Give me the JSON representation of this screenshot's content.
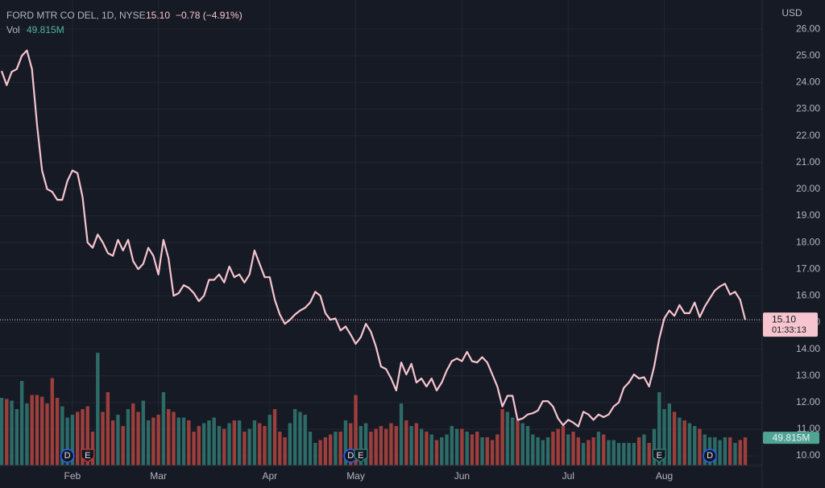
{
  "chart_data": {
    "type": "line",
    "title": "FORD MTR CO DEL, 1D, NYSE",
    "last_price": {
      "value": 15.1,
      "label": "15.10"
    },
    "change": "−0.78 (−4.91%)",
    "countdown": "01:33:13",
    "currency": "USD",
    "ylim": [
      9.64,
      27.09
    ],
    "yticks": [
      {
        "value": 10,
        "label": "10.00"
      },
      {
        "value": 11,
        "label": "11.00"
      },
      {
        "value": 12,
        "label": "12.00"
      },
      {
        "value": 13,
        "label": "13.00"
      },
      {
        "value": 14,
        "label": "14.00"
      },
      {
        "value": 15,
        "label": "15.00"
      },
      {
        "value": 16,
        "label": "16.00"
      },
      {
        "value": 17,
        "label": "17.00"
      },
      {
        "value": 18,
        "label": "18.00"
      },
      {
        "value": 19,
        "label": "19.00"
      },
      {
        "value": 20,
        "label": "20.00"
      },
      {
        "value": 21,
        "label": "21.00"
      },
      {
        "value": 22,
        "label": "22.00"
      },
      {
        "value": 23,
        "label": "23.00"
      },
      {
        "value": 24,
        "label": "24.00"
      },
      {
        "value": 25,
        "label": "25.00"
      },
      {
        "value": 26,
        "label": "26.00"
      }
    ],
    "grid": true,
    "categories": [
      null,
      null,
      null,
      null,
      null,
      null,
      null,
      null,
      null,
      null,
      null,
      null,
      null,
      null,
      "Feb",
      null,
      null,
      null,
      null,
      null,
      null,
      null,
      null,
      null,
      null,
      null,
      null,
      null,
      null,
      null,
      null,
      "Mar",
      null,
      null,
      null,
      null,
      null,
      null,
      null,
      null,
      null,
      null,
      null,
      null,
      null,
      null,
      null,
      null,
      null,
      null,
      null,
      null,
      null,
      "Apr",
      null,
      null,
      null,
      null,
      null,
      null,
      null,
      null,
      null,
      null,
      null,
      null,
      null,
      null,
      null,
      null,
      "May",
      null,
      null,
      null,
      null,
      null,
      null,
      null,
      null,
      null,
      null,
      null,
      null,
      null,
      null,
      null,
      null,
      null,
      null,
      null,
      null,
      "Jun",
      null,
      null,
      null,
      null,
      null,
      null,
      null,
      null,
      null,
      null,
      null,
      null,
      null,
      null,
      null,
      null,
      null,
      null,
      null,
      null,
      "Jul",
      null,
      null,
      null,
      null,
      null,
      null,
      null,
      null,
      null,
      null,
      null,
      null,
      null,
      null,
      null,
      null,
      null,
      null,
      "Aug",
      null,
      null,
      null,
      null,
      null,
      null,
      null,
      null,
      null,
      null,
      null,
      null,
      null,
      null,
      null,
      null
    ],
    "series": [
      {
        "color": "#f7c5cf",
        "values": [
          24.43,
          23.9,
          24.4,
          24.5,
          25.0,
          25.2,
          24.5,
          22.4,
          20.7,
          20.0,
          19.9,
          19.6,
          19.6,
          20.3,
          20.7,
          20.6,
          19.7,
          18.0,
          17.8,
          18.3,
          18.0,
          17.6,
          17.5,
          18.1,
          17.7,
          18.1,
          17.3,
          17.0,
          17.2,
          17.8,
          17.5,
          16.8,
          18.1,
          17.4,
          16.0,
          16.1,
          16.4,
          16.3,
          16.1,
          15.8,
          16.0,
          16.6,
          16.6,
          16.8,
          16.5,
          17.1,
          16.7,
          16.8,
          16.5,
          16.8,
          17.7,
          17.2,
          16.7,
          16.7,
          15.85,
          15.3,
          14.95,
          15.1,
          15.3,
          15.45,
          15.55,
          15.75,
          16.15,
          16.0,
          15.35,
          15.1,
          15.15,
          14.7,
          14.85,
          14.55,
          14.2,
          14.45,
          14.95,
          14.65,
          14.1,
          13.35,
          13.25,
          12.9,
          12.45,
          13.5,
          13.05,
          13.45,
          12.75,
          12.9,
          12.6,
          12.9,
          12.45,
          12.75,
          13.2,
          13.55,
          13.65,
          13.55,
          13.9,
          13.55,
          13.5,
          13.7,
          13.5,
          13.05,
          12.6,
          11.85,
          12.25,
          12.25,
          11.35,
          11.4,
          11.55,
          11.6,
          11.7,
          12.05,
          12.05,
          11.85,
          11.4,
          11.15,
          11.35,
          11.25,
          11.1,
          11.65,
          11.55,
          11.35,
          11.55,
          11.45,
          11.55,
          11.85,
          12.0,
          12.55,
          12.75,
          13.05,
          12.9,
          12.95,
          12.6,
          13.35,
          14.4,
          15.15,
          15.45,
          15.25,
          15.65,
          15.35,
          15.35,
          15.75,
          15.2,
          15.6,
          15.9,
          16.2,
          16.35,
          16.45,
          16.05,
          16.15,
          15.85,
          15.1
        ]
      }
    ],
    "volume": {
      "label": "Vol",
      "lim": [
        0,
        826
      ],
      "up_color": "#2d6b66",
      "down_color": "#9c3f3c",
      "current": {
        "value": 49.815,
        "label": "49.815M"
      },
      "values": [
        120,
        118,
        115,
        100,
        150,
        110,
        125,
        125,
        122,
        110,
        155,
        120,
        105,
        85,
        90,
        95,
        100,
        105,
        60,
        200,
        95,
        130,
        80,
        90,
        70,
        100,
        110,
        95,
        115,
        80,
        85,
        90,
        130,
        100,
        95,
        85,
        85,
        80,
        60,
        70,
        75,
        80,
        85,
        70,
        65,
        75,
        80,
        80,
        60,
        65,
        80,
        75,
        70,
        90,
        100,
        60,
        50,
        75,
        100,
        95,
        90,
        60,
        40,
        45,
        50,
        55,
        60,
        60,
        80,
        75,
        125,
        70,
        75,
        60,
        65,
        70,
        65,
        75,
        70,
        110,
        80,
        70,
        75,
        65,
        60,
        55,
        45,
        50,
        55,
        70,
        65,
        65,
        60,
        55,
        60,
        50,
        50,
        45,
        55,
        100,
        95,
        85,
        80,
        75,
        70,
        55,
        50,
        45,
        50,
        60,
        65,
        70,
        55,
        60,
        50,
        40,
        45,
        50,
        60,
        55,
        45,
        45,
        40,
        40,
        40,
        40,
        50,
        55,
        40,
        65,
        130,
        100,
        110,
        95,
        85,
        80,
        75,
        70,
        65,
        55,
        50,
        50,
        45,
        50,
        50,
        40,
        45,
        49.815
      ]
    },
    "events": [
      {
        "label": "D",
        "at": 13,
        "color": "#2962ff"
      },
      {
        "label": "E",
        "at": 17,
        "color": "#b23a3a"
      },
      {
        "label": "D",
        "at": 69,
        "color": "#2962ff"
      },
      {
        "label": "E",
        "at": 71,
        "color": "#2d7a6e"
      },
      {
        "label": "E",
        "at": 130,
        "color": "#2d7a6e"
      },
      {
        "label": "D",
        "at": 140,
        "color": "#2962ff"
      }
    ]
  }
}
